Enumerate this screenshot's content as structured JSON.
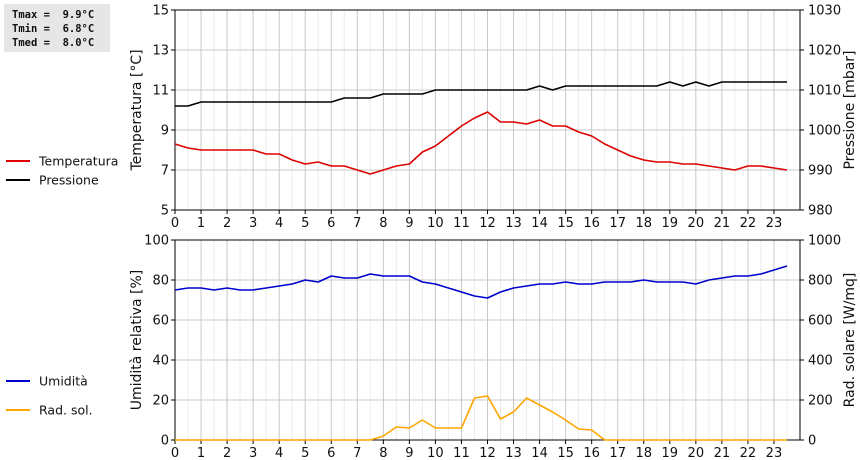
{
  "stats": {
    "tmax": "Tmax =  9.9°C",
    "tmin": "Tmin =  6.8°C",
    "tmed": "Tmed =  8.0°C"
  },
  "chart_data": [
    {
      "type": "line",
      "x_ticks": [
        "0",
        "1",
        "2",
        "3",
        "4",
        "5",
        "6",
        "7",
        "8",
        "9",
        "10",
        "11",
        "12",
        "13",
        "14",
        "15",
        "16",
        "17",
        "18",
        "19",
        "20",
        "21",
        "22",
        "23"
      ],
      "xlim": [
        0,
        24
      ],
      "ylabel_left": "Temperatura [°C]",
      "ylabel_right": "Pressione [mbar]",
      "ylim_left": [
        5,
        15
      ],
      "yticks_left": [
        "5",
        "7",
        "9",
        "11",
        "13",
        "15"
      ],
      "ylim_right": [
        980,
        1030
      ],
      "yticks_right": [
        "980",
        "990",
        "1000",
        "1010",
        "1020",
        "1030"
      ],
      "grid": true,
      "legend_placement": "left",
      "series": [
        {
          "name": "Temperatura",
          "axis": "left",
          "color": "#dd0000",
          "x": [
            0,
            0.5,
            1,
            1.5,
            2,
            2.5,
            3,
            3.5,
            4,
            4.5,
            5,
            5.5,
            6,
            6.5,
            7,
            7.5,
            8,
            8.5,
            9,
            9.5,
            10,
            10.5,
            11,
            11.5,
            12,
            12.5,
            13,
            13.5,
            14,
            14.5,
            15,
            15.5,
            16,
            16.5,
            17,
            17.5,
            18,
            18.5,
            19,
            19.5,
            20,
            20.5,
            21,
            21.5,
            22,
            22.5,
            23,
            23.5
          ],
          "values": [
            8.3,
            8.1,
            8.0,
            8.0,
            8.0,
            8.0,
            8.0,
            7.8,
            7.8,
            7.5,
            7.3,
            7.4,
            7.2,
            7.2,
            7.0,
            6.8,
            7.0,
            7.2,
            7.3,
            7.9,
            8.2,
            8.7,
            9.2,
            9.6,
            9.9,
            9.4,
            9.4,
            9.3,
            9.5,
            9.2,
            9.2,
            8.9,
            8.7,
            8.3,
            8.0,
            7.7,
            7.5,
            7.4,
            7.4,
            7.3,
            7.3,
            7.2,
            7.1,
            7.0,
            7.2,
            7.2,
            7.1,
            7.0
          ]
        },
        {
          "name": "Pressione",
          "axis": "right",
          "color": "#000000",
          "x": [
            0,
            0.5,
            1,
            1.5,
            2,
            2.5,
            3,
            3.5,
            4,
            4.5,
            5,
            5.5,
            6,
            6.5,
            7,
            7.5,
            8,
            8.5,
            9,
            9.5,
            10,
            10.5,
            11,
            11.5,
            12,
            12.5,
            13,
            13.5,
            14,
            14.5,
            15,
            15.5,
            16,
            16.5,
            17,
            17.5,
            18,
            18.5,
            19,
            19.5,
            20,
            20.5,
            21,
            21.5,
            22,
            22.5,
            23,
            23.5
          ],
          "values": [
            1006,
            1006,
            1007,
            1007,
            1007,
            1007,
            1007,
            1007,
            1007,
            1007,
            1007,
            1007,
            1007,
            1008,
            1008,
            1008,
            1009,
            1009,
            1009,
            1009,
            1010,
            1010,
            1010,
            1010,
            1010,
            1010,
            1010,
            1010,
            1011,
            1010,
            1011,
            1011,
            1011,
            1011,
            1011,
            1011,
            1011,
            1011,
            1012,
            1011,
            1012,
            1011,
            1012,
            1012,
            1012,
            1012,
            1012,
            1012
          ]
        }
      ]
    },
    {
      "type": "line",
      "x_ticks": [
        "0",
        "1",
        "2",
        "3",
        "4",
        "5",
        "6",
        "7",
        "8",
        "9",
        "10",
        "11",
        "12",
        "13",
        "14",
        "15",
        "16",
        "17",
        "18",
        "19",
        "20",
        "21",
        "22",
        "23"
      ],
      "xlim": [
        0,
        24
      ],
      "ylabel_left": "Umidità relativa [%]",
      "ylabel_right": "Rad. solare [W/mq]",
      "ylim_left": [
        0,
        100
      ],
      "yticks_left": [
        "0",
        "20",
        "40",
        "60",
        "80",
        "100"
      ],
      "ylim_right": [
        0,
        1000
      ],
      "yticks_right": [
        "0",
        "200",
        "400",
        "600",
        "800",
        "1000"
      ],
      "grid": true,
      "legend_placement": "left",
      "series": [
        {
          "name": "Umidità",
          "axis": "left",
          "color": "#0000cc",
          "x": [
            0,
            0.5,
            1,
            1.5,
            2,
            2.5,
            3,
            3.5,
            4,
            4.5,
            5,
            5.5,
            6,
            6.5,
            7,
            7.5,
            8,
            8.5,
            9,
            9.5,
            10,
            10.5,
            11,
            11.5,
            12,
            12.5,
            13,
            13.5,
            14,
            14.5,
            15,
            15.5,
            16,
            16.5,
            17,
            17.5,
            18,
            18.5,
            19,
            19.5,
            20,
            20.5,
            21,
            21.5,
            22,
            22.5,
            23,
            23.5
          ],
          "values": [
            75,
            76,
            76,
            75,
            76,
            75,
            75,
            76,
            77,
            78,
            80,
            79,
            82,
            81,
            81,
            83,
            82,
            82,
            82,
            79,
            78,
            76,
            74,
            72,
            71,
            74,
            76,
            77,
            78,
            78,
            79,
            78,
            78,
            79,
            79,
            79,
            80,
            79,
            79,
            79,
            78,
            80,
            81,
            82,
            82,
            83,
            85,
            87
          ]
        },
        {
          "name": "Rad. sol.",
          "axis": "right",
          "color": "#ffa500",
          "x": [
            0,
            0.5,
            1,
            1.5,
            2,
            2.5,
            3,
            3.5,
            4,
            4.5,
            5,
            5.5,
            6,
            6.5,
            7,
            7.5,
            8,
            8.5,
            9,
            9.5,
            10,
            10.5,
            11,
            11.5,
            12,
            12.5,
            13,
            13.5,
            14,
            14.5,
            15,
            15.5,
            16,
            16.5,
            17,
            17.5,
            18,
            18.5,
            19,
            19.5,
            20,
            20.5,
            21,
            21.5,
            22,
            22.5,
            23,
            23.5
          ],
          "values": [
            0,
            0,
            0,
            0,
            0,
            0,
            0,
            0,
            0,
            0,
            0,
            0,
            0,
            0,
            0,
            0,
            20,
            65,
            60,
            100,
            60,
            60,
            60,
            210,
            220,
            105,
            140,
            210,
            175,
            140,
            100,
            55,
            50,
            0,
            0,
            0,
            0,
            0,
            0,
            0,
            0,
            0,
            0,
            0,
            0,
            0,
            0,
            0
          ]
        }
      ]
    }
  ]
}
